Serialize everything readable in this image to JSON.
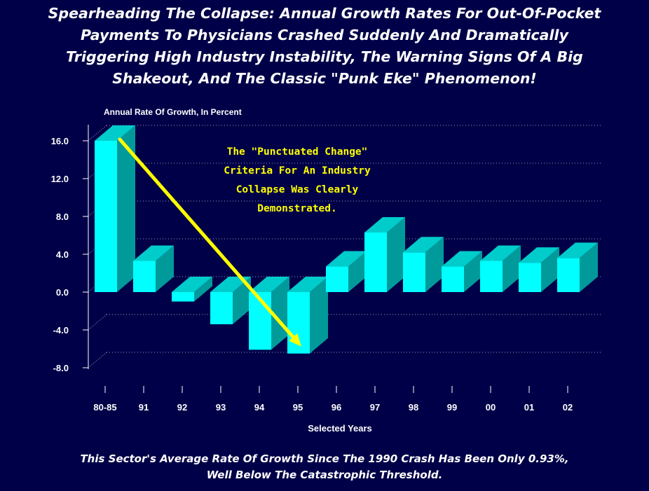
{
  "title": "Spearheading The Collapse: Annual Growth Rates For Out-Of-Pocket Payments To Physicians Crashed Suddenly And Dramatically Triggering High Industry Instability, The Warning Signs Of A Big Shakeout, And The Classic \"Punk Eke\" Phenomenon!",
  "title_lines": [
    "Spearheading The Collapse: Annual Growth Rates For Out-Of-Pocket",
    "Payments To Physicians Crashed Suddenly And Dramatically",
    "Triggering High Industry Instability, The Warning Signs Of A Big",
    "Shakeout, And The Classic \"Punk Eke\" Phenomenon!"
  ],
  "footnote_lines": [
    "This Sector's Average Rate Of Growth Since The 1990 Crash Has Been Only 0.93%,",
    "Well Below The Catastrophic Threshold."
  ],
  "colors": {
    "background": "#000048",
    "bar_front": "#00ffff",
    "bar_top": "#00cccc",
    "bar_side": "#009a9a",
    "arrow": "#ffff00",
    "annotation": "#ffff00",
    "text": "#ffffff"
  },
  "chart_data": {
    "type": "bar",
    "style": "3d",
    "categories": [
      "80-85",
      "91",
      "92",
      "93",
      "94",
      "95",
      "96",
      "97",
      "98",
      "99",
      "00",
      "01",
      "02"
    ],
    "values": [
      16.0,
      3.3,
      -1.0,
      -3.4,
      -6.1,
      -6.5,
      2.7,
      6.3,
      4.2,
      2.7,
      3.3,
      3.1,
      3.6
    ],
    "ylabel": "Annual Rate Of Growth, In Percent",
    "xlabel": "Selected Years",
    "yticks": [
      "16.0",
      "12.0",
      "8.0",
      "4.0",
      "0.0",
      "-4.0",
      "-8.0"
    ],
    "ylim": [
      -8,
      18
    ],
    "grid": true,
    "annotation": {
      "lines": [
        "The \"Punctuated Change\"",
        "Criteria For An Industry",
        "Collapse Was Clearly",
        "Demonstrated."
      ],
      "arrow_from_category": "80-85",
      "arrow_to_category": "95"
    }
  }
}
